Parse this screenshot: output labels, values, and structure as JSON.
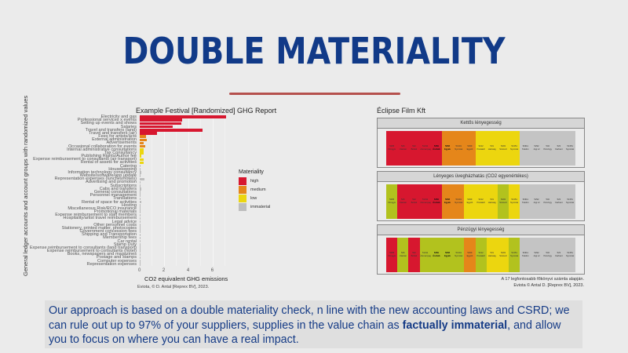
{
  "slide": {
    "title": "DOUBLE MATERIALITY",
    "accent_color": "#113a88",
    "underline_color": "#b5504d",
    "blurb": {
      "part1": "Our approach is based on a double materiality check, n line with the new accounting laws and CSRD; we can rule out up to 97% of your suppliers, supplies in the value chain as ",
      "bold1": "factually immaterial",
      "part2": ", and allow you to focus on where you can have a real impact."
    }
  },
  "chart_data": [
    {
      "type": "bar",
      "orientation": "horizontal",
      "title": "Example Festival [Randomized] GHG Report",
      "xlabel": "CO2 equivalent GHG emissions",
      "ylabel": "General ledger accounts and account groups with randomized values",
      "xlim": [
        0,
        7.5
      ],
      "xticks": [
        "0",
        "2",
        "4",
        "6"
      ],
      "grid": true,
      "credit": "Eviota, © D. Antal [Reprex BV], 2023.",
      "legend": {
        "title": "Materiality",
        "position": "right",
        "entries": [
          {
            "label": "high",
            "color": "#d7172f"
          },
          {
            "label": "medium",
            "color": "#e5861a"
          },
          {
            "label": "low",
            "color": "#ecd60f"
          },
          {
            "label": "immaterial",
            "color": "#bdbdbd"
          }
        ]
      },
      "categories": [
        "Electricity and gas",
        "Professional services x events",
        "Setting up events and shows",
        "Salaries",
        "Travel and transfers (land)",
        "Travel and transfers (air)",
        "Fees for artists/acts",
        "External administration",
        "Advertisements",
        "Occasional collaboration for events",
        "Internal administrative consultations",
        "Tax Consultancy",
        "Publishing Rights/Author fee",
        "Expense reimbursement to consultants (air transport)",
        "Rental of assets for activities",
        "Catering",
        "Housekeeping",
        "Information technology consultancy",
        "Website/software/app update",
        "Representation expenses (lunches/hotels)",
        "Advertising and promotion",
        "Subscriptions",
        "Cabs and transfers",
        "General consultations",
        "Personnel management",
        "Translations",
        "Rental of space for activities",
        "Hosting",
        "Miscellaneous Risk/RCO insurance",
        "Promotional materials",
        "Expense reimbursement to staff members",
        "Hospitality/artist travel reimbursement",
        "Legal advice",
        "Other personnel costs",
        "Stationery, printed matter, photocopies",
        "Government concession fees",
        "Shipping and Transportation",
        "Membership fees",
        "Car rental",
        "Stamp Duty",
        "Expense reimbursement to consultants (land transport)",
        "Expense reimbursement to consultants (hotel)",
        "Books, newspapers and magazines",
        "Postage and stamps",
        "Computer expenses",
        "Representation expenses"
      ],
      "values": [
        7.1,
        3.5,
        3.4,
        2.7,
        5.2,
        1.4,
        0.5,
        0.55,
        0.3,
        0.45,
        0.35,
        0.3,
        0.15,
        0.35,
        0.35,
        0.03,
        0.05,
        0.1,
        0.05,
        0.4,
        0.05,
        0.03,
        0.1,
        0.05,
        0.03,
        0.03,
        0.1,
        0.03,
        0.03,
        0.03,
        0.02,
        0.05,
        0.02,
        0.02,
        0.02,
        0.02,
        0.02,
        0.02,
        0.02,
        0.02,
        0.02,
        0.02,
        0.02,
        0.02,
        0.02,
        0.02
      ],
      "materiality": [
        "high",
        "high",
        "high",
        "high",
        "high",
        "high",
        "medium",
        "medium",
        "medium",
        "medium",
        "low",
        "low",
        "low",
        "low",
        "low",
        "immaterial",
        "immaterial",
        "immaterial",
        "immaterial",
        "immaterial",
        "immaterial",
        "immaterial",
        "immaterial",
        "immaterial",
        "immaterial",
        "immaterial",
        "immaterial",
        "immaterial",
        "immaterial",
        "immaterial",
        "immaterial",
        "immaterial",
        "immaterial",
        "immaterial",
        "immaterial",
        "immaterial",
        "immaterial",
        "immaterial",
        "immaterial",
        "immaterial",
        "immaterial",
        "immaterial",
        "immaterial",
        "immaterial",
        "immaterial",
        "immaterial"
      ]
    },
    {
      "type": "heatmap",
      "title": "Éclipse Film Kft",
      "note_line1": "A 17 legfontosabb főkönyvi számla alapján.",
      "note_line2": "Eviota © Antal D. [Reprex BV], 2023.",
      "colors": {
        "high": "#d7172f",
        "medium": "#e5861a",
        "low": "#ecd60f",
        "olive": "#b2c21e",
        "immaterial": "#c4c4c4"
      },
      "accounts": [
        {
          "code": "5295",
          "name": "Filmgyá"
        },
        {
          "code": "526",
          "name": "Utazási"
        },
        {
          "code": "522",
          "name": "Bérleti"
        },
        {
          "code": "51311",
          "name": "Üzemanyag"
        },
        {
          "code": "5269",
          "name": "Áruháb",
          "bold": true
        },
        {
          "code": "5958",
          "name": "Egyéb",
          "bold": true
        },
        {
          "code": "51301",
          "name": "Nyomtat"
        },
        {
          "code": "5299",
          "name": "Egyéb"
        },
        {
          "code": "5212",
          "name": "Postaköl"
        },
        {
          "code": "531",
          "name": "Hatóság"
        },
        {
          "code": "5293",
          "name": "Számvit"
        },
        {
          "code": "51351",
          "name": "Nyomtat"
        },
        {
          "code": "52911",
          "name": "Telefon"
        },
        {
          "code": "5292",
          "name": "Jogi sz"
        },
        {
          "code": "532",
          "name": "Pénzügy"
        },
        {
          "code": "523",
          "name": "Karbant"
        },
        {
          "code": "51351",
          "name": "Nyomtat"
        }
      ],
      "panels": [
        {
          "label": "Kettős lényegesség",
          "levels": [
            "high",
            "high",
            "high",
            "high",
            "high",
            "medium",
            "medium",
            "medium",
            "low",
            "low",
            "low",
            "low",
            "immaterial",
            "immaterial",
            "immaterial",
            "immaterial",
            "immaterial"
          ]
        },
        {
          "label": "Lényeges üvegházhatás (CO2 egyenértékes)",
          "levels": [
            "olive",
            "high",
            "high",
            "high",
            "high",
            "medium",
            "medium",
            "low",
            "low",
            "low",
            "olive",
            "low",
            "immaterial",
            "immaterial",
            "immaterial",
            "immaterial",
            "immaterial"
          ]
        },
        {
          "label": "Pénzügyi lényegesség",
          "levels": [
            "high",
            "olive",
            "high",
            "olive",
            "olive",
            "olive",
            "olive",
            "medium",
            "olive",
            "low",
            "low",
            "olive",
            "immaterial",
            "immaterial",
            "immaterial",
            "immaterial",
            "immaterial"
          ]
        }
      ]
    }
  ]
}
